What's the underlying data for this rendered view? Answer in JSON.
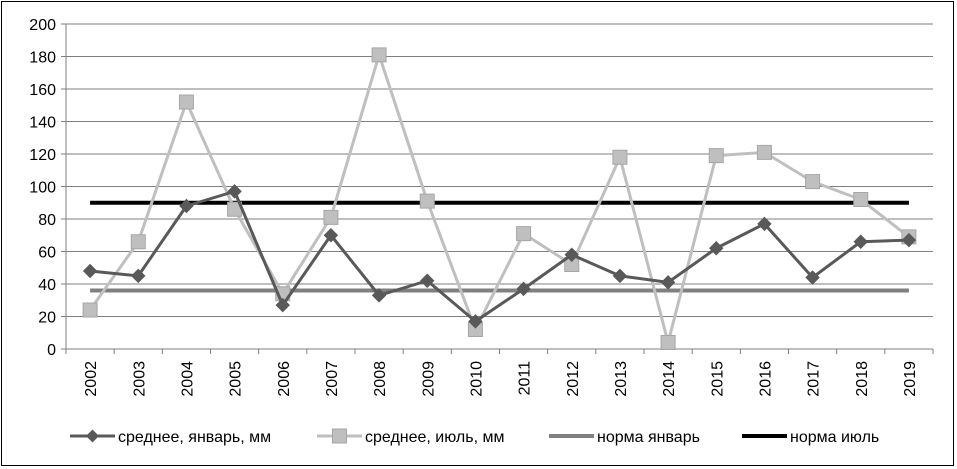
{
  "chart_data": {
    "type": "line",
    "categories": [
      "2002",
      "2003",
      "2004",
      "2005",
      "2006",
      "2007",
      "2008",
      "2009",
      "2010",
      "2011",
      "2012",
      "2013",
      "2014",
      "2015",
      "2016",
      "2017",
      "2018",
      "2019"
    ],
    "series": [
      {
        "name": "среднее, январь, мм",
        "color": "#595959",
        "marker": "diamond",
        "values": [
          48,
          45,
          88,
          97,
          27,
          70,
          33,
          42,
          17,
          37,
          58,
          45,
          41,
          62,
          77,
          44,
          66,
          67
        ]
      },
      {
        "name": "среднее, июль, мм",
        "color": "#BFBFBF",
        "marker": "square",
        "values": [
          24,
          66,
          152,
          86,
          34,
          81,
          181,
          91,
          12,
          71,
          52,
          118,
          4,
          119,
          121,
          103,
          92,
          69
        ]
      },
      {
        "name": "норма январь",
        "color": "#808080",
        "marker": "none",
        "values": [
          36,
          36,
          36,
          36,
          36,
          36,
          36,
          36,
          36,
          36,
          36,
          36,
          36,
          36,
          36,
          36,
          36,
          36
        ]
      },
      {
        "name": "норма июль",
        "color": "#000000",
        "marker": "none",
        "values": [
          90,
          90,
          90,
          90,
          90,
          90,
          90,
          90,
          90,
          90,
          90,
          90,
          90,
          90,
          90,
          90,
          90,
          90
        ]
      }
    ],
    "yticks": [
      "0",
      "20",
      "40",
      "60",
      "80",
      "100",
      "120",
      "140",
      "160",
      "180",
      "200"
    ],
    "ylim": [
      0,
      200
    ],
    "grid": true,
    "legend_position": "bottom",
    "title": "",
    "xlabel": "",
    "ylabel": ""
  }
}
